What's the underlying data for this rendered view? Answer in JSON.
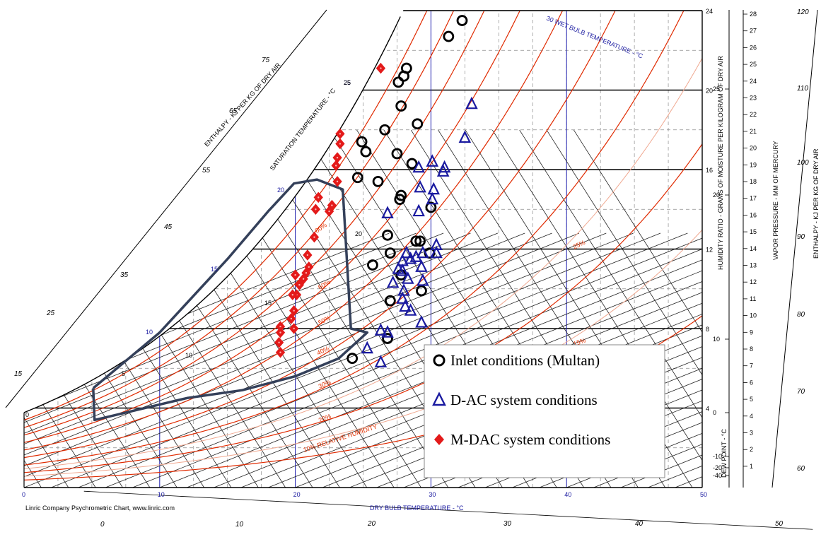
{
  "chart_data": {
    "type": "scatter",
    "xlabel": "DRY BULB TEMPERATURE - °C",
    "ylabel": "HUMIDITY RATIO - GRAMS OF MOISTURE PER KILOGRAM OF DRY AIR",
    "xlim": [
      0,
      50
    ],
    "ylim": [
      0,
      24
    ],
    "x_ticks": [
      "0",
      "10",
      "20",
      "30",
      "40",
      "50"
    ],
    "y_ticks": [
      "4",
      "8",
      "12",
      "16",
      "20",
      "24"
    ],
    "credit": "Linric Company Psychrometric Chart, www.linric.com",
    "wet_bulb_label": "30 WET BULB TEMPERATURE - °C",
    "wet_bulb_ticks": [
      "25",
      "25",
      "20",
      "15",
      "10",
      "5",
      "0"
    ],
    "saturation_label": "SATURATION TEMPERATURE - °C",
    "saturation_ticks": [
      "25",
      "20",
      "15",
      "10"
    ],
    "enthalpy_left_label": "ENTHALPY - KJ PER KG OF DRY AIR",
    "enthalpy_left_ticks": [
      "75",
      "65",
      "55",
      "45",
      "35",
      "25",
      "15"
    ],
    "enthalpy_right_label": "ENTHALPY - KJ PER KG OF DRY AIR",
    "enthalpy_right_ticks": [
      "120",
      "110",
      "100",
      "90",
      "80",
      "70",
      "60"
    ],
    "rh_labels": [
      "10% RELATIVE HUMIDITY",
      "20%",
      "30%",
      "40%",
      "50%",
      "60%",
      "80%",
      "25%",
      "15%"
    ],
    "vapor_label": "VAPOR PRESSURE - MM OF MERCURY",
    "vapor_ticks": [
      "28",
      "27",
      "26",
      "25",
      "24",
      "23",
      "22",
      "21",
      "20",
      "19",
      "18",
      "17",
      "16",
      "15",
      "14",
      "13",
      "12",
      "11",
      "10",
      "9",
      "8",
      "7",
      "6",
      "5",
      "4",
      "3",
      "2",
      "1"
    ],
    "dew_label": "DEW POINT - °C",
    "dew_ticks": [
      "25",
      "20",
      "10",
      "0",
      "-10",
      "-20",
      "-40"
    ],
    "bottom_enthalpy_ticks": [
      "0",
      "10",
      "20",
      "30",
      "40",
      "50"
    ],
    "series": [
      {
        "name": "Inlet conditions (Multan)",
        "marker": "circle",
        "color": "#000000",
        "points": [
          [
            32.3,
            23.5
          ],
          [
            31.3,
            22.7
          ],
          [
            28.2,
            21.1
          ],
          [
            28.0,
            20.7
          ],
          [
            27.6,
            20.4
          ],
          [
            27.8,
            19.2
          ],
          [
            29.0,
            18.3
          ],
          [
            26.6,
            18.0
          ],
          [
            24.9,
            17.4
          ],
          [
            25.2,
            16.9
          ],
          [
            27.5,
            16.8
          ],
          [
            28.6,
            16.3
          ],
          [
            24.6,
            15.6
          ],
          [
            26.1,
            15.4
          ],
          [
            27.8,
            14.7
          ],
          [
            27.7,
            14.5
          ],
          [
            30.0,
            14.1
          ],
          [
            26.8,
            12.7
          ],
          [
            29.2,
            12.4
          ],
          [
            28.9,
            12.4
          ],
          [
            27.0,
            11.8
          ],
          [
            29.9,
            11.8
          ],
          [
            25.7,
            11.2
          ],
          [
            27.8,
            10.7
          ],
          [
            29.3,
            9.9
          ],
          [
            27.0,
            9.4
          ],
          [
            26.8,
            7.5
          ],
          [
            24.2,
            6.5
          ]
        ]
      },
      {
        "name": "D-AC system conditions",
        "marker": "triangle",
        "color": "#1a1aa0",
        "points": [
          [
            33.0,
            19.3
          ],
          [
            32.5,
            17.6
          ],
          [
            30.1,
            16.4
          ],
          [
            29.1,
            16.1
          ],
          [
            31.0,
            16.1
          ],
          [
            30.9,
            15.9
          ],
          [
            29.2,
            15.1
          ],
          [
            30.2,
            15.0
          ],
          [
            30.1,
            14.5
          ],
          [
            26.8,
            13.8
          ],
          [
            29.1,
            13.9
          ],
          [
            30.4,
            12.2
          ],
          [
            28.2,
            11.8
          ],
          [
            29.4,
            11.8
          ],
          [
            30.4,
            11.8
          ],
          [
            28.9,
            11.6
          ],
          [
            28.5,
            11.5
          ],
          [
            27.9,
            11.4
          ],
          [
            29.3,
            11.1
          ],
          [
            27.6,
            11.0
          ],
          [
            27.9,
            10.9
          ],
          [
            28.3,
            10.5
          ],
          [
            29.4,
            10.4
          ],
          [
            27.2,
            10.3
          ],
          [
            28.0,
            9.9
          ],
          [
            27.9,
            9.5
          ],
          [
            28.1,
            9.1
          ],
          [
            28.5,
            8.9
          ],
          [
            29.3,
            8.3
          ],
          [
            26.3,
            7.9
          ],
          [
            26.8,
            7.8
          ],
          [
            25.3,
            7.0
          ],
          [
            26.3,
            6.3
          ]
        ]
      },
      {
        "name": "M-DAC system conditions",
        "marker": "diamond",
        "color": "#e31a1a",
        "points": [
          [
            26.3,
            21.1
          ],
          [
            23.3,
            17.8
          ],
          [
            23.3,
            17.3
          ],
          [
            23.1,
            16.6
          ],
          [
            23.0,
            16.2
          ],
          [
            23.1,
            15.4
          ],
          [
            22.7,
            14.2
          ],
          [
            22.5,
            13.9
          ],
          [
            21.7,
            14.6
          ],
          [
            21.5,
            14.0
          ],
          [
            21.4,
            12.6
          ],
          [
            20.9,
            11.7
          ],
          [
            21.0,
            11.1
          ],
          [
            20.8,
            10.8
          ],
          [
            20.6,
            10.5
          ],
          [
            20.3,
            10.2
          ],
          [
            20.0,
            10.7
          ],
          [
            20.1,
            9.7
          ],
          [
            19.8,
            9.7
          ],
          [
            19.9,
            8.9
          ],
          [
            19.7,
            8.5
          ],
          [
            18.9,
            8.1
          ],
          [
            19.9,
            8.0
          ],
          [
            18.9,
            7.8
          ],
          [
            18.8,
            7.3
          ],
          [
            18.9,
            6.8
          ]
        ]
      }
    ],
    "polygon": [
      [
        5.1,
        5.0
      ],
      [
        5.2,
        3.4
      ],
      [
        12.0,
        4.5
      ],
      [
        16.1,
        4.9
      ],
      [
        20.0,
        5.6
      ],
      [
        23.2,
        6.5
      ],
      [
        25.3,
        7.8
      ],
      [
        24.1,
        8.0
      ],
      [
        23.5,
        15.0
      ],
      [
        21.6,
        15.5
      ],
      [
        19.9,
        15.3
      ],
      [
        18.0,
        13.9
      ],
      [
        15.0,
        11.5
      ],
      [
        10.0,
        7.8
      ],
      [
        5.1,
        5.0
      ]
    ],
    "legend": {
      "placement": "lower-right",
      "entries": [
        "Inlet conditions (Multan)",
        "D-AC system conditions",
        "M-DAC system conditions"
      ]
    }
  }
}
